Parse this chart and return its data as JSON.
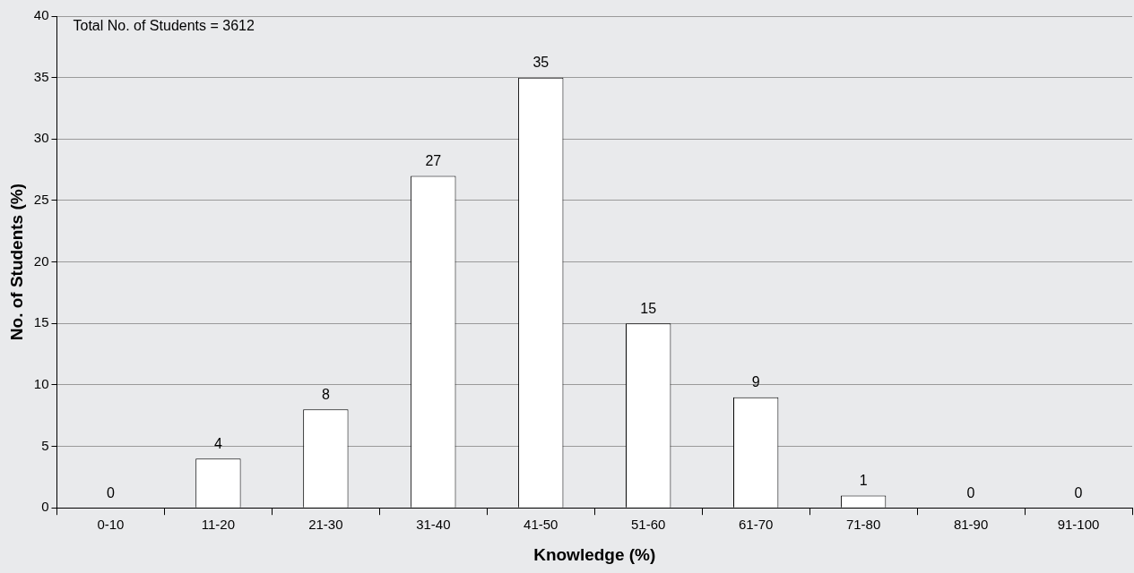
{
  "chart_data": {
    "type": "bar",
    "xlabel": "Knowledge (%)",
    "ylabel": "No. of Students (%)",
    "annotations": [
      "Total No. of Students = 3612"
    ],
    "categories": [
      "0-10",
      "11-20",
      "21-30",
      "31-40",
      "41-50",
      "51-60",
      "61-70",
      "71-80",
      "81-90",
      "91-100"
    ],
    "values": [
      0,
      4,
      8,
      27,
      35,
      15,
      9,
      1,
      0,
      0
    ],
    "color": "#ffffff",
    "ylim": [
      0,
      40
    ],
    "yticks": [
      0,
      5,
      10,
      15,
      20,
      25,
      30,
      35,
      40
    ],
    "grid": "y",
    "data_labels": true,
    "legend": false
  }
}
